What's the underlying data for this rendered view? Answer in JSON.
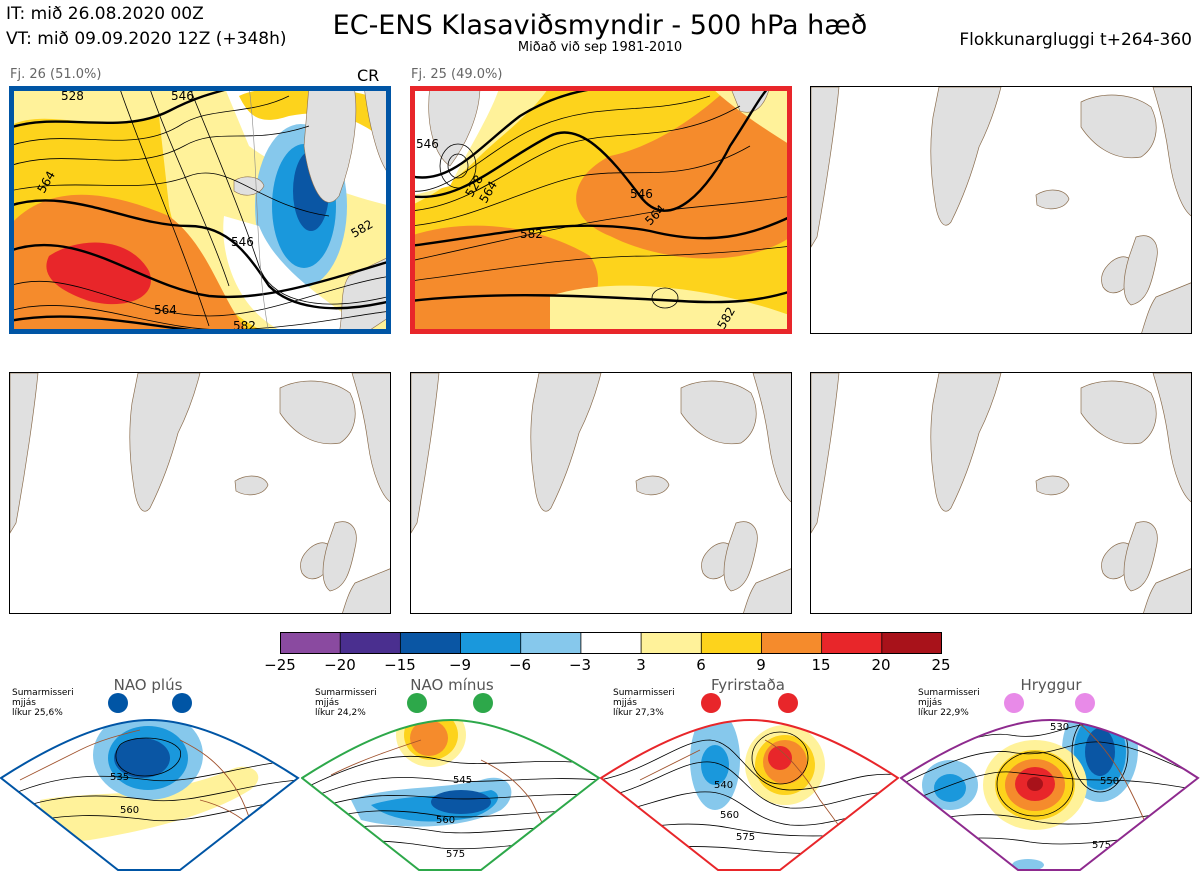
{
  "header": {
    "it": "IT: mið 26.08.2020 00Z",
    "vt": "VT: mið 09.09.2020 12Z  (+348h)",
    "title": "EC-ENS Klasaviðsmyndir - 500 hPa hæð",
    "subtitle": "Miðað við sep 1981-2010",
    "window": "Flokkunargluggi t+264-360"
  },
  "panels": [
    {
      "label": "Fj. 26 (51.0%)",
      "tag": "CR",
      "frame_color": "#0055a5",
      "contours": [
        "546",
        "546",
        "564",
        "564",
        "582",
        "582",
        "528"
      ]
    },
    {
      "label": "Fj. 25 (49.0%)",
      "tag": "",
      "frame_color": "#e8262a",
      "contours": [
        "546",
        "564",
        "582",
        "564",
        "546",
        "582",
        "528"
      ]
    }
  ],
  "colorbar": {
    "ticks": [
      "−25",
      "−20",
      "−15",
      "−9",
      "−6",
      "−3",
      "3",
      "6",
      "9",
      "15",
      "20",
      "25"
    ],
    "colors": [
      "#8a4aa0",
      "#4a2f8f",
      "#0a56a4",
      "#1a98dc",
      "#86c8ec",
      "#ffffff",
      "#fff29a",
      "#fdd31c",
      "#f58b2c",
      "#e8262a",
      "#a8121a"
    ]
  },
  "regimes": [
    {
      "name": "NAO plús",
      "note1": "Sumarmisseri",
      "note2": "mjjás",
      "note3": "líkur 25,6%",
      "color": "#0055a5",
      "contours": [
        "535",
        "560"
      ]
    },
    {
      "name": "NAO mínus",
      "note1": "Sumarmisseri",
      "note2": "mjjás",
      "note3": "líkur 24,2%",
      "color": "#2da84a",
      "contours": [
        "545",
        "560",
        "575"
      ]
    },
    {
      "name": "Fyrirstaða",
      "note1": "Sumarmisseri",
      "note2": "mjjás",
      "note3": "líkur 27,3%",
      "color": "#e8262a",
      "contours": [
        "540",
        "560",
        "575"
      ]
    },
    {
      "name": "Hryggur",
      "note1": "Sumarmisseri",
      "note2": "mjjás",
      "note3": "líkur 22,9%",
      "color": "#8e2a8e",
      "contours": [
        "530",
        "550",
        "575"
      ]
    }
  ]
}
